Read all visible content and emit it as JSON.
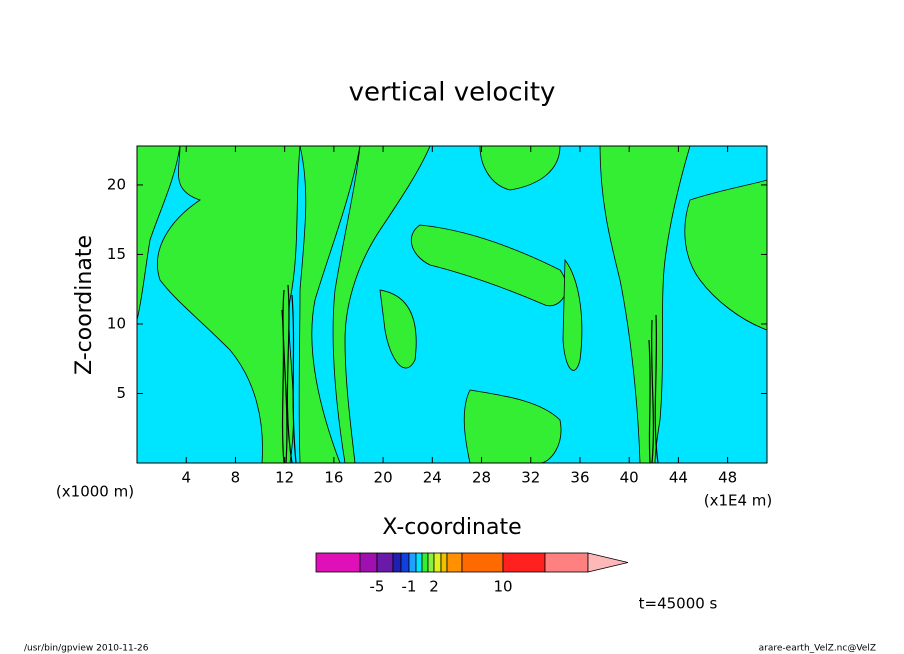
{
  "chart_data": {
    "type": "contour",
    "title": "vertical velocity",
    "xlabel": "X-coordinate",
    "ylabel": "Z-coordinate",
    "xunit": "(x1E4 m)",
    "yunit": "(x1000 m)",
    "xlim": [
      0,
      51.2
    ],
    "ylim": [
      0,
      22.8
    ],
    "xticks": [
      4,
      8,
      12,
      16,
      20,
      24,
      28,
      32,
      36,
      40,
      44,
      48
    ],
    "yticks": [
      5,
      10,
      15,
      20
    ],
    "colorbar": {
      "levels": [
        -20,
        -10,
        -5,
        -3,
        -2,
        -1,
        -0.5,
        0,
        1,
        2,
        3,
        5,
        7,
        10,
        15,
        20
      ],
      "colors": [
        "#e010b8",
        "#a010b0",
        "#6a1aa8",
        "#2020b0",
        "#1040e0",
        "#20a0ff",
        "#00e5ff",
        "#33ee33",
        "#88f040",
        "#e0f020",
        "#f0c000",
        "#ff9000",
        "#ff6a00",
        "#ff2020",
        "#ff8080"
      ],
      "extend_color": "#ffb8b8",
      "ticks": [
        -5,
        -1,
        2,
        10
      ]
    },
    "time_label": "t=45000 s",
    "footer_left": "/usr/bin/gpview  2010-11-26",
    "footer_right": "arare-earth_VelZ.nc@VelZ"
  }
}
